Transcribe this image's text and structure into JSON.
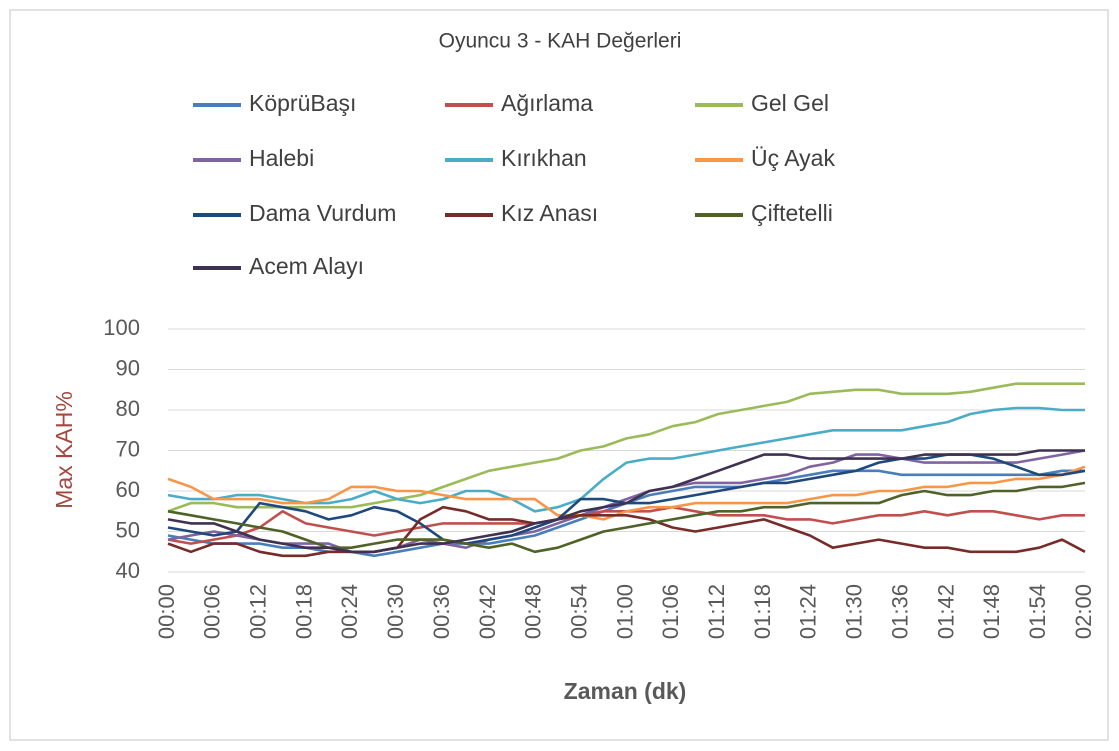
{
  "chart_data": {
    "type": "line",
    "title": "Oyuncu 3 - KAH Değerleri",
    "x_label": "Zaman (dk)",
    "y_label": "Max KAH%",
    "categories": [
      "00:00",
      null,
      "00:06",
      null,
      "00:12",
      null,
      "00:18",
      null,
      "00:24",
      null,
      "00:30",
      null,
      "00:36",
      null,
      "00:42",
      null,
      "00:48",
      null,
      "00:54",
      null,
      "01:00",
      null,
      "01:06",
      null,
      "01:12",
      null,
      "01:18",
      null,
      "01:24",
      null,
      "01:30",
      null,
      "01:36",
      null,
      "01:42",
      null,
      "01:48",
      null,
      "01:54",
      null,
      "02:00"
    ],
    "ylim": [
      40,
      100
    ],
    "yticks": [
      40,
      50,
      60,
      70,
      80,
      90,
      100
    ],
    "grid": true,
    "legend": "top",
    "series": [
      {
        "name": "KöprüBaşı",
        "color": "#4a7ebb",
        "values": [
          49,
          48,
          47,
          47,
          47,
          46,
          46,
          45,
          45,
          44,
          45,
          46,
          47,
          47,
          47,
          48,
          49,
          51,
          53,
          55,
          57,
          59,
          60,
          61,
          61,
          61,
          62,
          63,
          64,
          65,
          65,
          65,
          64,
          64,
          64,
          64,
          64,
          64,
          64,
          65,
          65
        ]
      },
      {
        "name": "Ağırlama",
        "color": "#c0504d",
        "values": [
          48,
          47,
          48,
          49,
          51,
          55,
          52,
          51,
          50,
          49,
          50,
          51,
          52,
          52,
          52,
          52,
          52,
          53,
          54,
          55,
          55,
          55,
          56,
          55,
          54,
          54,
          54,
          53,
          53,
          52,
          53,
          54,
          54,
          55,
          54,
          55,
          55,
          54,
          53,
          54,
          54
        ]
      },
      {
        "name": "Gel Gel",
        "color": "#9bbb59",
        "values": [
          55,
          57,
          57,
          56,
          56,
          56,
          56,
          56,
          56,
          57,
          58,
          59,
          61,
          63,
          65,
          66,
          67,
          68,
          70,
          71,
          73,
          74,
          76,
          77,
          79,
          80,
          81,
          82,
          84,
          84.5,
          85,
          85,
          84,
          84,
          84,
          84.5,
          85.5,
          86.5,
          86.5,
          86.5,
          86.5
        ]
      },
      {
        "name": "Halebi",
        "color": "#8064a2",
        "values": [
          48,
          49,
          50,
          49,
          48,
          47,
          47,
          47,
          45,
          45,
          46,
          48,
          47,
          46,
          48,
          49,
          50,
          52,
          54,
          56,
          58,
          60,
          61,
          62,
          62,
          62,
          63,
          64,
          66,
          67,
          69,
          69,
          68,
          67,
          67,
          67,
          67,
          67,
          68,
          69,
          70
        ]
      },
      {
        "name": "Kırıkhan",
        "color": "#4bacc6",
        "values": [
          59,
          58,
          58,
          59,
          59,
          58,
          57,
          57,
          58,
          60,
          58,
          57,
          58,
          60,
          60,
          58,
          55,
          56,
          58,
          63,
          67,
          68,
          68,
          69,
          70,
          71,
          72,
          73,
          74,
          75,
          75,
          75,
          75,
          76,
          77,
          79,
          80,
          80.5,
          80.5,
          80,
          80
        ]
      },
      {
        "name": "Üç Ayak",
        "color": "#f79646",
        "values": [
          63,
          61,
          58,
          58,
          58,
          57,
          57,
          58,
          61,
          61,
          60,
          60,
          59,
          58,
          58,
          58,
          58,
          54,
          54,
          53,
          55,
          56,
          56,
          57,
          57,
          57,
          57,
          57,
          58,
          59,
          59,
          60,
          60,
          61,
          61,
          62,
          62,
          63,
          63,
          64,
          66
        ]
      },
      {
        "name": "Dama Vurdum",
        "color": "#1f497d",
        "values": [
          51,
          50,
          49,
          50,
          57,
          56,
          55,
          53,
          54,
          56,
          55,
          52,
          48,
          47,
          48,
          49,
          51,
          53,
          58,
          58,
          57,
          57,
          58,
          59,
          60,
          61,
          62,
          62,
          63,
          64,
          65,
          67,
          68,
          68,
          69,
          69,
          68,
          66,
          64,
          64,
          65
        ]
      },
      {
        "name": "Kız Anası",
        "color": "#772c2a",
        "values": [
          47,
          45,
          47,
          47,
          45,
          44,
          44,
          45,
          45,
          45,
          46,
          53,
          56,
          55,
          53,
          53,
          52,
          53,
          54,
          54,
          54,
          53,
          51,
          50,
          51,
          52,
          53,
          51,
          49,
          46,
          47,
          48,
          47,
          46,
          46,
          45,
          45,
          45,
          46,
          48,
          45
        ]
      },
      {
        "name": "Çiftetelli",
        "color": "#4f6228",
        "values": [
          55,
          54,
          53,
          52,
          51,
          50,
          48,
          46,
          46,
          47,
          48,
          48,
          48,
          47,
          46,
          47,
          45,
          46,
          48,
          50,
          51,
          52,
          53,
          54,
          55,
          55,
          56,
          56,
          57,
          57,
          57,
          57,
          59,
          60,
          59,
          59,
          60,
          60,
          61,
          61,
          62
        ]
      },
      {
        "name": "Acem Alayı",
        "color": "#3f3151",
        "values": [
          53,
          52,
          52,
          50,
          48,
          47,
          46,
          46,
          45,
          45,
          46,
          47,
          47,
          48,
          49,
          50,
          52,
          53,
          55,
          56,
          57,
          60,
          61,
          63,
          65,
          67,
          69,
          69,
          68,
          68,
          68,
          68,
          68,
          69,
          69,
          69,
          69,
          69,
          70,
          70,
          70
        ]
      }
    ]
  }
}
